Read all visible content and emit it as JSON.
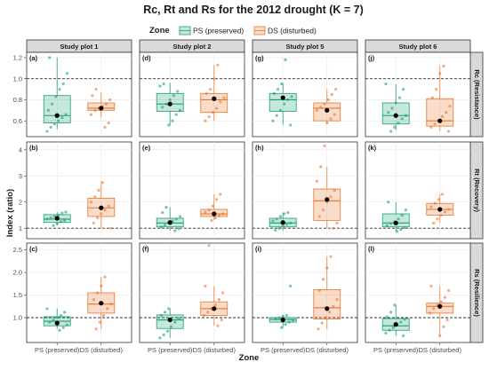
{
  "chart_data": {
    "type": "box",
    "title": "Rc, Rt and Rs for the 2012 drought (K = 7)",
    "legend": {
      "title": "Zone",
      "placement": "top",
      "entries": [
        {
          "key": "PS",
          "label": "PS (preserved)",
          "color": "#1b9e77"
        },
        {
          "key": "DS",
          "label": "DS (disturbed)",
          "color": "#e8762d"
        }
      ]
    },
    "xlabel": "Zone",
    "ylabel": "Index (ratio)",
    "categories": [
      "PS (preserved)",
      "DS (disturbed)"
    ],
    "columns": [
      "Study plot 1",
      "Study plot 2",
      "Study plot 5",
      "Study plot 6"
    ],
    "rows": [
      {
        "label": "Rc (Resistance)",
        "ylim": [
          0.45,
          1.25
        ],
        "yticks": [
          "0.6",
          "0.8",
          "1.0",
          "1.2"
        ],
        "reference": 1.0
      },
      {
        "label": "Rt (Recovery)",
        "ylim": [
          0.6,
          4.3
        ],
        "yticks": [
          "1",
          "2",
          "3",
          "4"
        ],
        "reference": 1.0
      },
      {
        "label": "Rs (Resilience)",
        "ylim": [
          0.45,
          2.65
        ],
        "yticks": [
          "1.0",
          "1.5",
          "2.0",
          "2.5"
        ],
        "reference": 1.0
      }
    ],
    "panels": [
      {
        "id": "(a)",
        "row": 0,
        "col": 0,
        "boxes": [
          {
            "q1": 0.58,
            "median": 0.65,
            "q3": 0.84,
            "wlo": 0.52,
            "whi": 1.2,
            "mean": 0.65,
            "points": [
              0.5,
              0.54,
              0.57,
              0.6,
              0.63,
              0.66,
              0.7,
              0.76,
              0.83,
              0.9,
              0.95,
              1.05,
              1.2
            ]
          },
          {
            "q1": 0.7,
            "median": 0.72,
            "q3": 0.77,
            "wlo": 0.63,
            "whi": 0.87,
            "mean": 0.72,
            "points": [
              0.54,
              0.58,
              0.66,
              0.7,
              0.72,
              0.74,
              0.76,
              0.8,
              0.84,
              0.9
            ]
          }
        ]
      },
      {
        "id": "(d)",
        "row": 0,
        "col": 1,
        "boxes": [
          {
            "q1": 0.69,
            "median": 0.76,
            "q3": 0.86,
            "wlo": 0.56,
            "whi": 0.96,
            "mean": 0.76,
            "points": [
              0.56,
              0.6,
              0.66,
              0.7,
              0.73,
              0.76,
              0.8,
              0.84,
              0.88,
              0.93,
              0.95
            ]
          },
          {
            "q1": 0.68,
            "median": 0.8,
            "q3": 0.86,
            "wlo": 0.6,
            "whi": 1.13,
            "mean": 0.81,
            "points": [
              0.6,
              0.64,
              0.68,
              0.72,
              0.78,
              0.82,
              0.86,
              0.9,
              1.0,
              1.13
            ]
          }
        ]
      },
      {
        "id": "(g)",
        "row": 0,
        "col": 2,
        "boxes": [
          {
            "q1": 0.69,
            "median": 0.8,
            "q3": 0.86,
            "wlo": 0.56,
            "whi": 0.96,
            "mean": 0.82,
            "points": [
              0.56,
              0.6,
              0.65,
              0.7,
              0.76,
              0.8,
              0.83,
              0.86,
              0.9,
              0.95,
              1.18
            ]
          },
          {
            "q1": 0.6,
            "median": 0.72,
            "q3": 0.77,
            "wlo": 0.58,
            "whi": 0.9,
            "mean": 0.7,
            "points": [
              0.58,
              0.62,
              0.66,
              0.7,
              0.73,
              0.76,
              0.8,
              0.85,
              0.9
            ]
          }
        ]
      },
      {
        "id": "(j)",
        "row": 0,
        "col": 3,
        "boxes": [
          {
            "q1": 0.57,
            "median": 0.65,
            "q3": 0.77,
            "wlo": 0.51,
            "whi": 0.95,
            "mean": 0.65,
            "points": [
              0.5,
              0.54,
              0.58,
              0.62,
              0.65,
              0.68,
              0.72,
              0.77,
              0.82,
              0.9,
              0.95
            ]
          },
          {
            "q1": 0.55,
            "median": 0.6,
            "q3": 0.81,
            "wlo": 0.5,
            "whi": 1.12,
            "mean": 0.6,
            "points": [
              0.5,
              0.54,
              0.57,
              0.6,
              0.64,
              0.68,
              0.74,
              0.82,
              0.9,
              1.05,
              1.12
            ]
          }
        ]
      },
      {
        "id": "(b)",
        "row": 1,
        "col": 0,
        "boxes": [
          {
            "q1": 1.22,
            "median": 1.35,
            "q3": 1.52,
            "wlo": 1.1,
            "whi": 1.62,
            "mean": 1.38,
            "points": [
              1.1,
              1.18,
              1.25,
              1.3,
              1.35,
              1.4,
              1.45,
              1.5,
              1.58,
              1.62
            ]
          },
          {
            "q1": 1.45,
            "median": 1.78,
            "q3": 2.15,
            "wlo": 1.0,
            "whi": 2.75,
            "mean": 1.78,
            "points": [
              1.0,
              1.2,
              1.4,
              1.55,
              1.7,
              1.85,
              2.0,
              2.2,
              2.45,
              2.75
            ]
          }
        ]
      },
      {
        "id": "(e)",
        "row": 1,
        "col": 1,
        "boxes": [
          {
            "q1": 1.05,
            "median": 1.2,
            "q3": 1.38,
            "wlo": 0.9,
            "whi": 1.8,
            "mean": 1.22,
            "points": [
              0.9,
              0.98,
              1.05,
              1.12,
              1.2,
              1.28,
              1.35,
              1.45,
              1.6,
              1.8
            ]
          },
          {
            "q1": 1.45,
            "median": 1.55,
            "q3": 1.72,
            "wlo": 1.3,
            "whi": 2.3,
            "mean": 1.55,
            "points": [
              1.3,
              1.4,
              1.48,
              1.55,
              1.62,
              1.7,
              1.85,
              2.1,
              2.3
            ]
          }
        ]
      },
      {
        "id": "(h)",
        "row": 1,
        "col": 2,
        "boxes": [
          {
            "q1": 1.05,
            "median": 1.2,
            "q3": 1.38,
            "wlo": 0.9,
            "whi": 1.6,
            "mean": 1.22,
            "points": [
              0.92,
              1.0,
              1.08,
              1.15,
              1.2,
              1.28,
              1.35,
              1.45,
              1.55,
              1.6
            ]
          },
          {
            "q1": 1.3,
            "median": 2.05,
            "q3": 2.5,
            "wlo": 1.0,
            "whi": 3.35,
            "mean": 2.1,
            "points": [
              1.0,
              1.2,
              1.45,
              1.7,
              2.0,
              2.2,
              2.45,
              2.8,
              3.35,
              4.15
            ]
          }
        ]
      },
      {
        "id": "(k)",
        "row": 1,
        "col": 3,
        "boxes": [
          {
            "q1": 1.05,
            "median": 1.2,
            "q3": 1.55,
            "wlo": 0.88,
            "whi": 2.0,
            "mean": 1.2,
            "points": [
              0.88,
              0.95,
              1.02,
              1.1,
              1.18,
              1.25,
              1.35,
              1.5,
              1.7,
              2.0
            ]
          },
          {
            "q1": 1.5,
            "median": 1.72,
            "q3": 1.95,
            "wlo": 1.2,
            "whi": 2.3,
            "mean": 1.72,
            "points": [
              1.2,
              1.35,
              1.5,
              1.62,
              1.72,
              1.82,
              1.95,
              2.1,
              2.3
            ]
          }
        ]
      },
      {
        "id": "(c)",
        "row": 2,
        "col": 0,
        "boxes": [
          {
            "q1": 0.82,
            "median": 0.92,
            "q3": 1.02,
            "wlo": 0.75,
            "whi": 1.2,
            "mean": 0.88,
            "points": [
              0.72,
              0.78,
              0.84,
              0.9,
              0.95,
              1.0,
              1.05,
              1.12,
              1.2
            ]
          },
          {
            "q1": 1.1,
            "median": 1.3,
            "q3": 1.55,
            "wlo": 0.75,
            "whi": 1.9,
            "mean": 1.32,
            "points": [
              0.75,
              0.9,
              1.05,
              1.2,
              1.3,
              1.4,
              1.55,
              1.7,
              1.9
            ]
          }
        ]
      },
      {
        "id": "(f)",
        "row": 2,
        "col": 1,
        "boxes": [
          {
            "q1": 0.76,
            "median": 0.95,
            "q3": 1.06,
            "wlo": 0.55,
            "whi": 1.2,
            "mean": 0.95,
            "points": [
              0.55,
              0.62,
              0.7,
              0.8,
              0.9,
              0.98,
              1.05,
              1.12,
              1.2
            ]
          },
          {
            "q1": 1.05,
            "median": 1.2,
            "q3": 1.35,
            "wlo": 0.82,
            "whi": 1.7,
            "mean": 1.2,
            "points": [
              0.82,
              0.95,
              1.05,
              1.12,
              1.2,
              1.28,
              1.4,
              1.55,
              1.7,
              2.6
            ]
          }
        ]
      },
      {
        "id": "(i)",
        "row": 2,
        "col": 2,
        "boxes": [
          {
            "q1": 0.9,
            "median": 0.96,
            "q3": 1.0,
            "wlo": 0.78,
            "whi": 1.05,
            "mean": 0.95,
            "points": [
              0.78,
              0.85,
              0.9,
              0.94,
              0.97,
              1.0,
              1.03,
              1.05,
              1.7
            ]
          },
          {
            "q1": 0.97,
            "median": 1.22,
            "q3": 1.62,
            "wlo": 0.75,
            "whi": 2.35,
            "mean": 1.2,
            "points": [
              0.75,
              0.88,
              1.0,
              1.12,
              1.25,
              1.4,
              1.6,
              1.85,
              2.1,
              2.35
            ]
          }
        ]
      },
      {
        "id": "(l)",
        "row": 2,
        "col": 3,
        "boxes": [
          {
            "q1": 0.72,
            "median": 0.82,
            "q3": 0.98,
            "wlo": 0.6,
            "whi": 1.28,
            "mean": 0.85,
            "points": [
              0.6,
              0.66,
              0.72,
              0.78,
              0.84,
              0.9,
              0.96,
              1.02,
              1.12,
              1.28
            ]
          },
          {
            "q1": 1.1,
            "median": 1.25,
            "q3": 1.32,
            "wlo": 0.6,
            "whi": 1.7,
            "mean": 1.25,
            "points": [
              0.6,
              0.8,
              0.95,
              1.1,
              1.2,
              1.28,
              1.35,
              1.45,
              1.6,
              1.7
            ]
          }
        ]
      }
    ]
  }
}
